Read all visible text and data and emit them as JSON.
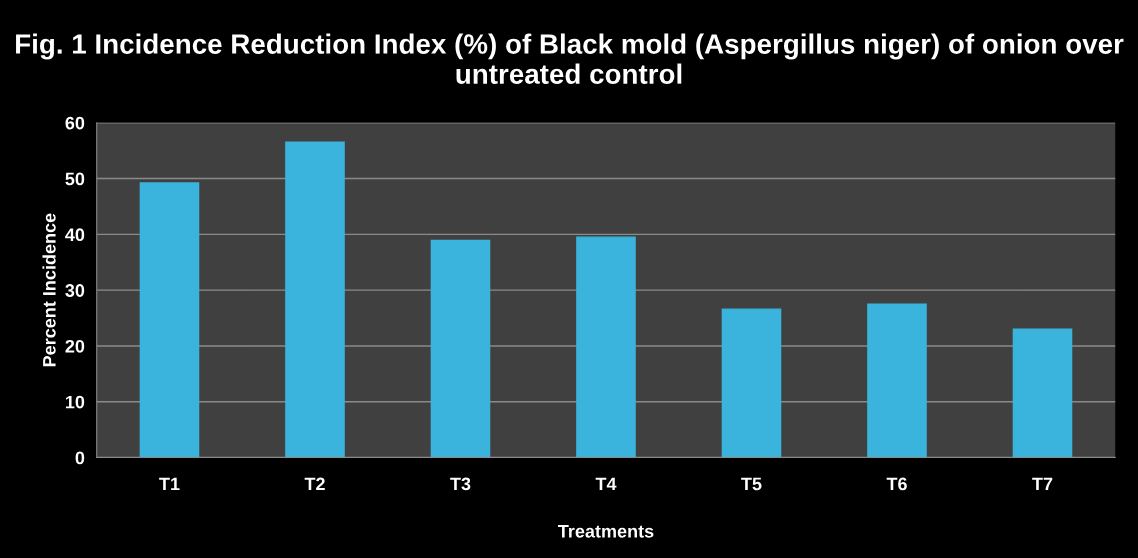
{
  "chart_data": {
    "type": "bar",
    "title": "Fig. 1 Incidence Reduction Index (%) of Black mold (Aspergillus niger) of onion over untreated control",
    "xlabel": "Treatments",
    "ylabel": "Percent Incidence",
    "categories": [
      "T1",
      "T2",
      "T3",
      "T4",
      "T5",
      "T6",
      "T7"
    ],
    "values": [
      49.2,
      56.5,
      38.9,
      39.5,
      26.6,
      27.5,
      23.0
    ],
    "color": "#3ab4dc",
    "ylim": [
      0,
      60
    ],
    "yticks": [
      0,
      10,
      20,
      30,
      40,
      50,
      60
    ],
    "grid": "y"
  }
}
